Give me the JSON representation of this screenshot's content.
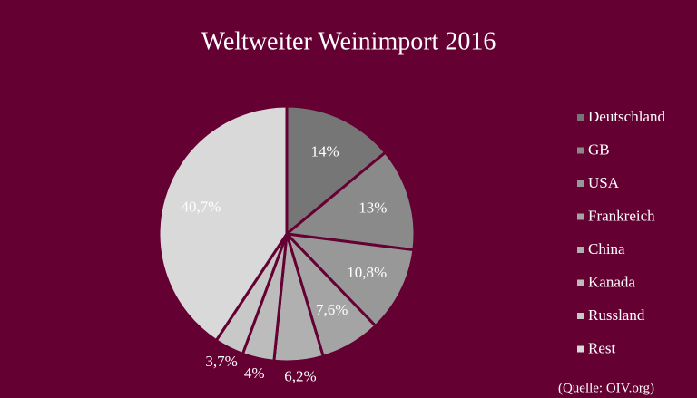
{
  "chart_data": {
    "type": "pie",
    "title": "Weltweiter Weinimport 2016",
    "categories": [
      "Deutschland",
      "GB",
      "USA",
      "Frankreich",
      "China",
      "Kanada",
      "Russland",
      "Rest"
    ],
    "values": [
      14,
      13,
      10.8,
      7.6,
      6.2,
      4,
      3.7,
      40.7
    ],
    "value_labels": [
      "14%",
      "13%",
      "10,8%",
      "7,6%",
      "6,2%",
      "4%",
      "3,7%",
      "40,7%"
    ],
    "colors": [
      "#767676",
      "#8a8a8a",
      "#989898",
      "#a4a4a4",
      "#b0b0b0",
      "#bcbcbc",
      "#c8c8c8",
      "#d9d9d9"
    ],
    "legend": "right",
    "annotation": "(Quelle: OIV.org)"
  }
}
